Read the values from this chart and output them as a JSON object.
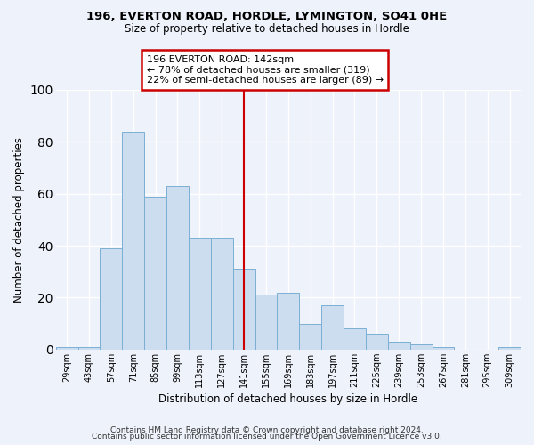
{
  "title1": "196, EVERTON ROAD, HORDLE, LYMINGTON, SO41 0HE",
  "title2": "Size of property relative to detached houses in Hordle",
  "xlabel": "Distribution of detached houses by size in Hordle",
  "ylabel": "Number of detached properties",
  "bin_labels": [
    "29sqm",
    "43sqm",
    "57sqm",
    "71sqm",
    "85sqm",
    "99sqm",
    "113sqm",
    "127sqm",
    "141sqm",
    "155sqm",
    "169sqm",
    "183sqm",
    "197sqm",
    "211sqm",
    "225sqm",
    "239sqm",
    "253sqm",
    "267sqm",
    "281sqm",
    "295sqm",
    "309sqm"
  ],
  "bar_values": [
    1,
    1,
    39,
    84,
    59,
    63,
    43,
    43,
    31,
    21,
    22,
    10,
    17,
    8,
    6,
    3,
    2,
    1,
    0,
    0,
    1
  ],
  "bar_color": "#ccddf0",
  "bar_edge_color": "#7aafd4",
  "vline_x_idx": 8,
  "vline_color": "#cc0000",
  "annotation_title": "196 EVERTON ROAD: 142sqm",
  "annotation_line1": "← 78% of detached houses are smaller (319)",
  "annotation_line2": "22% of semi-detached houses are larger (89) →",
  "annotation_box_color": "#cc0000",
  "ylim": [
    0,
    100
  ],
  "yticks": [
    0,
    20,
    40,
    60,
    80,
    100
  ],
  "footer1": "Contains HM Land Registry data © Crown copyright and database right 2024.",
  "footer2": "Contains public sector information licensed under the Open Government Licence v3.0.",
  "background_color": "#eef2fa",
  "grid_color": "#ffffff"
}
